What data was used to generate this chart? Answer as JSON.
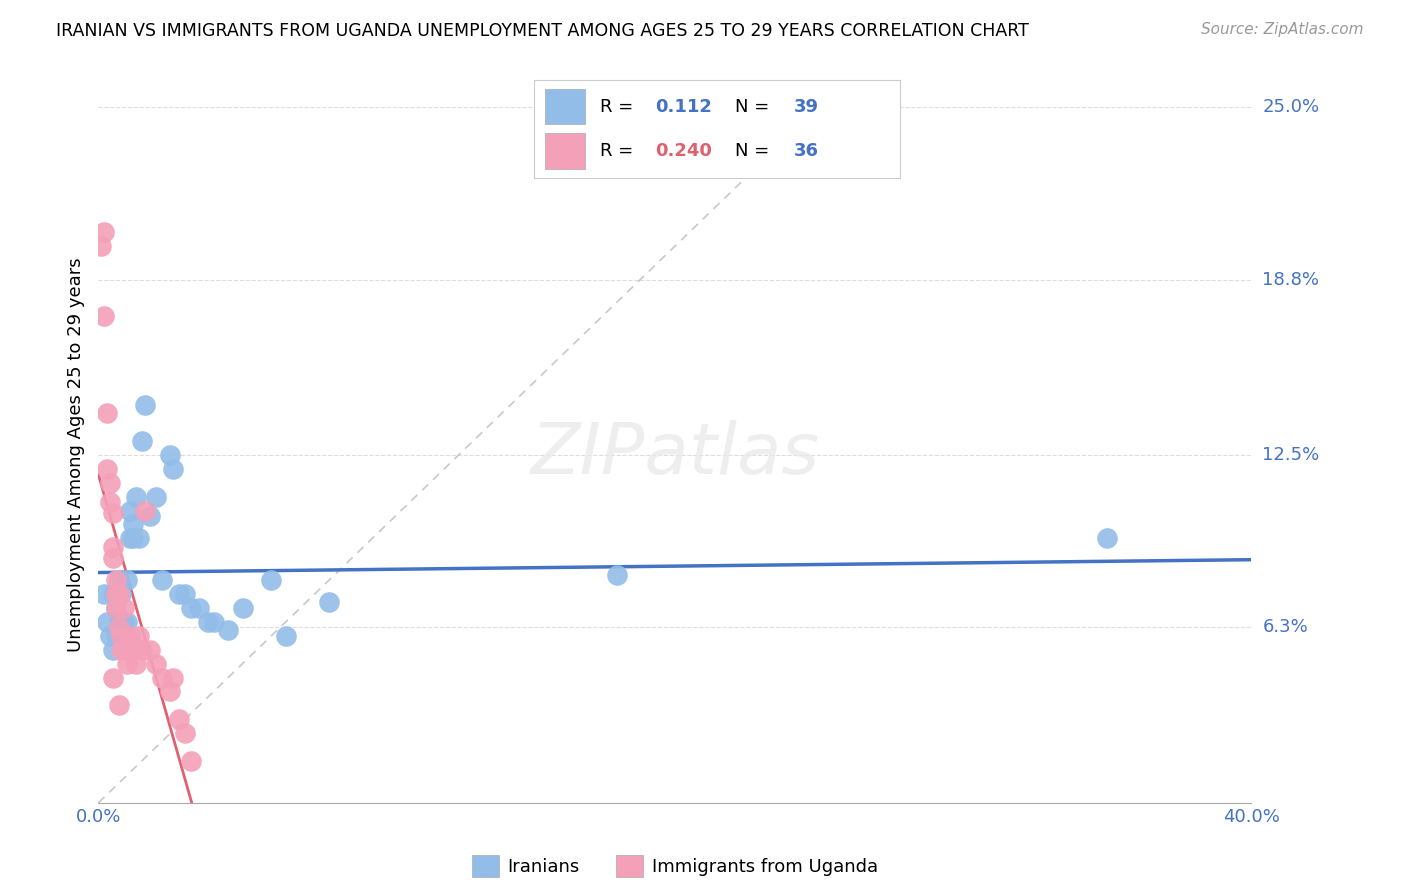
{
  "title": "IRANIAN VS IMMIGRANTS FROM UGANDA UNEMPLOYMENT AMONG AGES 25 TO 29 YEARS CORRELATION CHART",
  "source": "Source: ZipAtlas.com",
  "ylabel_label": "Unemployment Among Ages 25 to 29 years",
  "legend_label1": "Iranians",
  "legend_label2": "Immigrants from Uganda",
  "R1": "0.112",
  "N1": "39",
  "R2": "0.240",
  "N2": "36",
  "color_iranians": "#92bde8",
  "color_uganda": "#f4a0b8",
  "color_line1": "#4472c4",
  "color_line2": "#e06070",
  "xmax": 0.4,
  "ymax": 0.25,
  "yticks": [
    0.0,
    0.063,
    0.125,
    0.188,
    0.25
  ],
  "ytick_labels": [
    "",
    "6.3%",
    "12.5%",
    "18.8%",
    "25.0%"
  ],
  "xtick_labels": [
    "0.0%",
    "40.0%"
  ],
  "iranians_x": [
    0.002,
    0.003,
    0.004,
    0.005,
    0.005,
    0.006,
    0.006,
    0.007,
    0.007,
    0.008,
    0.009,
    0.01,
    0.01,
    0.011,
    0.011,
    0.012,
    0.012,
    0.013,
    0.014,
    0.015,
    0.016,
    0.018,
    0.02,
    0.022,
    0.025,
    0.026,
    0.028,
    0.03,
    0.032,
    0.035,
    0.038,
    0.04,
    0.045,
    0.05,
    0.06,
    0.065,
    0.08,
    0.18,
    0.35
  ],
  "iranians_y": [
    0.075,
    0.065,
    0.06,
    0.055,
    0.075,
    0.06,
    0.07,
    0.065,
    0.08,
    0.075,
    0.065,
    0.08,
    0.065,
    0.095,
    0.105,
    0.1,
    0.095,
    0.11,
    0.095,
    0.13,
    0.143,
    0.103,
    0.11,
    0.08,
    0.125,
    0.12,
    0.075,
    0.075,
    0.07,
    0.07,
    0.065,
    0.065,
    0.062,
    0.07,
    0.08,
    0.06,
    0.072,
    0.082,
    0.095
  ],
  "uganda_x": [
    0.001,
    0.002,
    0.002,
    0.003,
    0.003,
    0.004,
    0.004,
    0.005,
    0.005,
    0.005,
    0.006,
    0.006,
    0.006,
    0.007,
    0.007,
    0.008,
    0.008,
    0.009,
    0.01,
    0.01,
    0.011,
    0.012,
    0.013,
    0.014,
    0.015,
    0.016,
    0.018,
    0.02,
    0.022,
    0.025,
    0.026,
    0.028,
    0.03,
    0.032,
    0.005,
    0.007
  ],
  "uganda_y": [
    0.2,
    0.205,
    0.175,
    0.14,
    0.12,
    0.115,
    0.108,
    0.104,
    0.088,
    0.092,
    0.08,
    0.075,
    0.07,
    0.075,
    0.063,
    0.06,
    0.055,
    0.07,
    0.055,
    0.05,
    0.06,
    0.055,
    0.05,
    0.06,
    0.055,
    0.105,
    0.055,
    0.05,
    0.045,
    0.04,
    0.045,
    0.03,
    0.025,
    0.015,
    0.045,
    0.035
  ]
}
